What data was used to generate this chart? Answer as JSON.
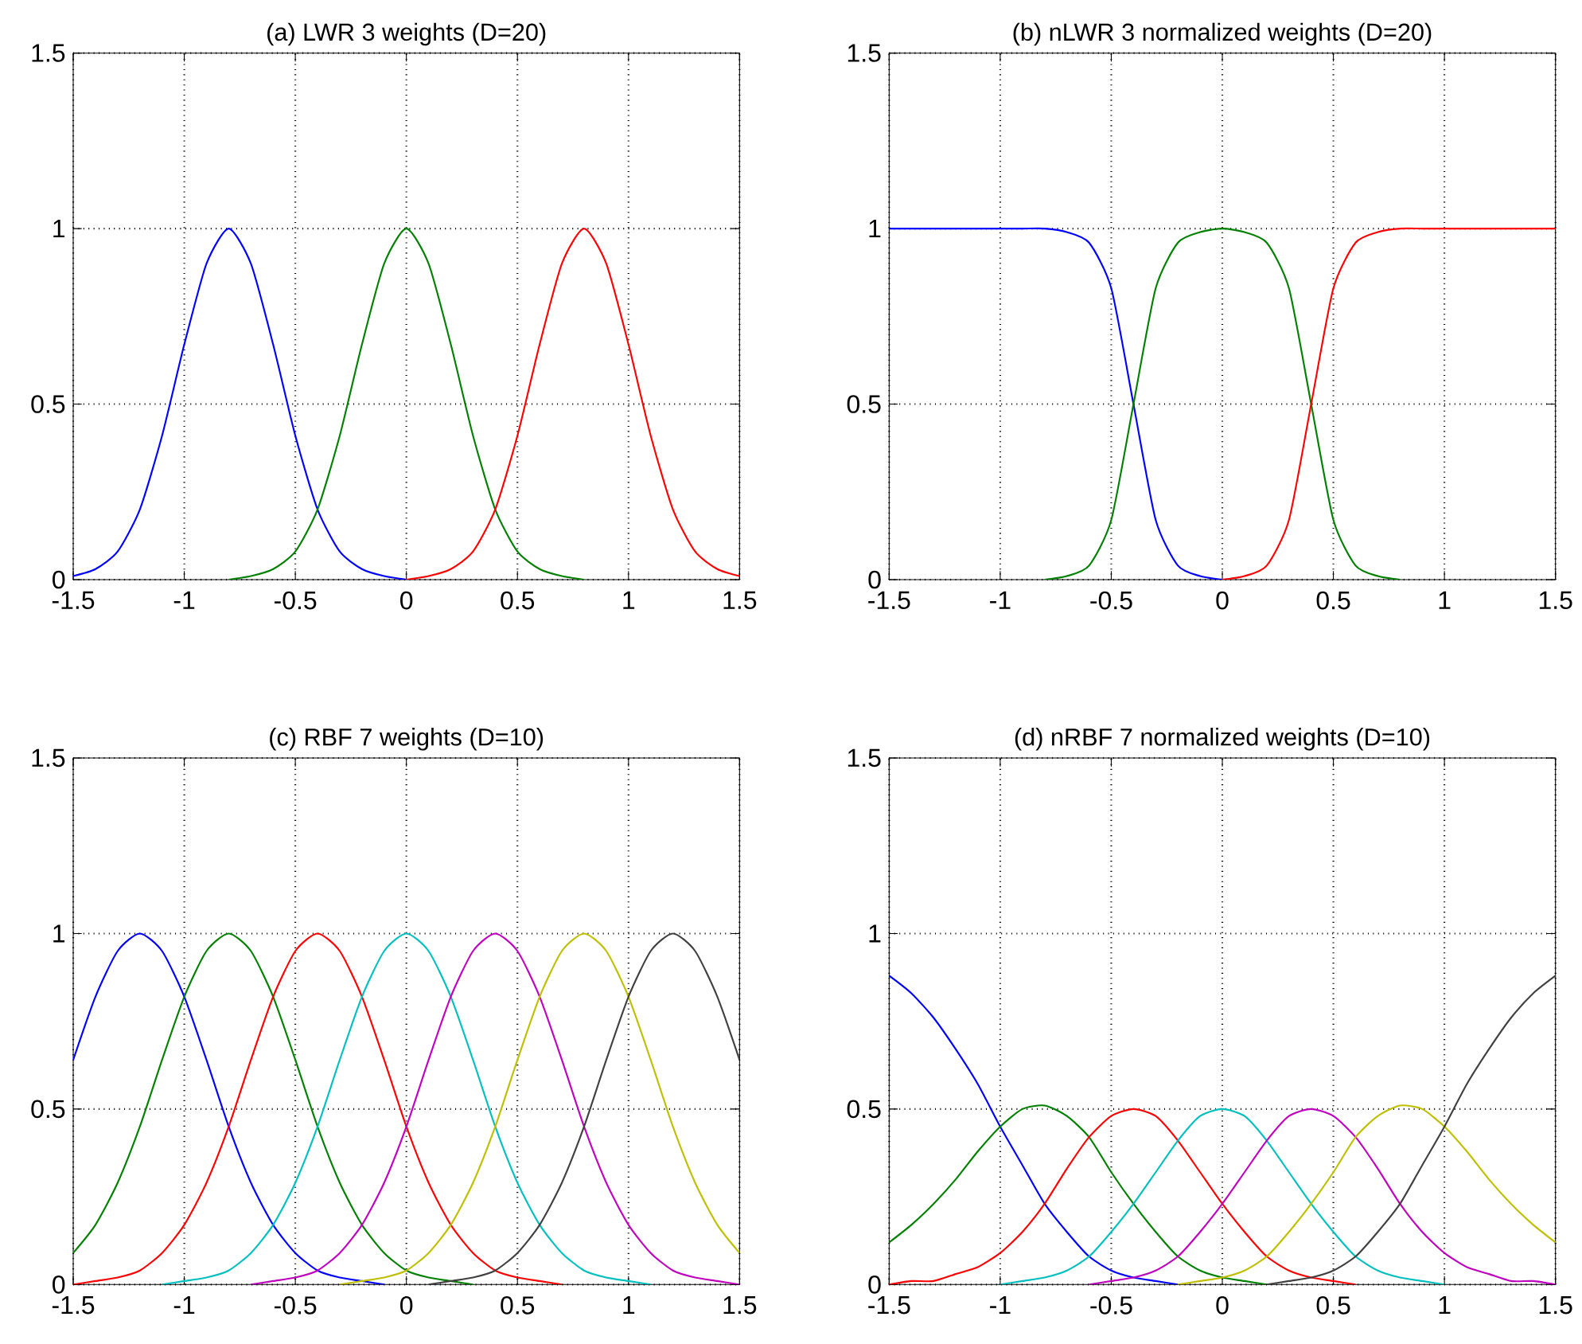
{
  "chart_data": [
    {
      "type": "line",
      "title": "(a) LWR 3 weights (D=20)",
      "x": [
        -1.5,
        -1.4,
        -1.3,
        -1.2,
        -1.1,
        -1.0,
        -0.9,
        -0.8,
        -0.7,
        -0.6,
        -0.5,
        -0.4,
        -0.3,
        -0.2,
        -0.1,
        0,
        0.1,
        0.2,
        0.3,
        0.4,
        0.5,
        0.6,
        0.7,
        0.8,
        0.9,
        1.0,
        1.1,
        1.2,
        1.3,
        1.4,
        1.5
      ],
      "xlim": [
        -1.5,
        1.5
      ],
      "ylim": [
        0,
        1.5
      ],
      "xticks": [
        -1.5,
        -1,
        -0.5,
        0,
        0.5,
        1,
        1.5
      ],
      "yticks": [
        0,
        0.5,
        1,
        1.5
      ],
      "grid": true,
      "series": [
        {
          "color": "#0000ff",
          "values": [
            0.01,
            0.03,
            0.08,
            0.2,
            0.41,
            0.67,
            0.9,
            1,
            0.9,
            0.67,
            0.41,
            0.2,
            0.08,
            0.03,
            0.01,
            0,
            null,
            null,
            null,
            null,
            null,
            null,
            null,
            null,
            null,
            null,
            null,
            null,
            null,
            null,
            null
          ]
        },
        {
          "color": "#008000",
          "values": [
            null,
            null,
            null,
            null,
            null,
            null,
            null,
            0,
            0.01,
            0.03,
            0.08,
            0.2,
            0.41,
            0.67,
            0.9,
            1,
            0.9,
            0.67,
            0.41,
            0.2,
            0.08,
            0.03,
            0.01,
            0,
            null,
            null,
            null,
            null,
            null,
            null,
            null
          ]
        },
        {
          "color": "#ff0000",
          "values": [
            null,
            null,
            null,
            null,
            null,
            null,
            null,
            null,
            null,
            null,
            null,
            null,
            null,
            null,
            null,
            0,
            0.01,
            0.03,
            0.08,
            0.2,
            0.41,
            0.67,
            0.9,
            1,
            0.9,
            0.67,
            0.41,
            0.2,
            0.08,
            0.03,
            0.01
          ]
        }
      ]
    },
    {
      "type": "line",
      "title": "(b) nLWR 3 normalized weights (D=20)",
      "x": [
        -1.5,
        -1.4,
        -1.3,
        -1.2,
        -1.1,
        -1.0,
        -0.9,
        -0.8,
        -0.7,
        -0.6,
        -0.5,
        -0.4,
        -0.3,
        -0.2,
        -0.1,
        0,
        0.1,
        0.2,
        0.3,
        0.4,
        0.5,
        0.6,
        0.7,
        0.8,
        0.9,
        1.0,
        1.1,
        1.2,
        1.3,
        1.4,
        1.5
      ],
      "xlim": [
        -1.5,
        1.5
      ],
      "ylim": [
        0,
        1.5
      ],
      "xticks": [
        -1.5,
        -1,
        -0.5,
        0,
        0.5,
        1,
        1.5
      ],
      "yticks": [
        0,
        0.5,
        1,
        1.5
      ],
      "grid": true,
      "series": [
        {
          "color": "#0000ff",
          "values": [
            1,
            1,
            1,
            1,
            1,
            1,
            1,
            1,
            0.99,
            0.96,
            0.83,
            0.5,
            0.17,
            0.04,
            0.01,
            0,
            null,
            null,
            null,
            null,
            null,
            null,
            null,
            null,
            null,
            null,
            null,
            null,
            null,
            null,
            null
          ]
        },
        {
          "color": "#008000",
          "values": [
            null,
            null,
            null,
            null,
            null,
            null,
            null,
            0,
            0.01,
            0.04,
            0.17,
            0.5,
            0.83,
            0.96,
            0.99,
            1,
            0.99,
            0.96,
            0.83,
            0.5,
            0.17,
            0.04,
            0.01,
            0,
            null,
            null,
            null,
            null,
            null,
            null,
            null
          ]
        },
        {
          "color": "#ff0000",
          "values": [
            null,
            null,
            null,
            null,
            null,
            null,
            null,
            null,
            null,
            null,
            null,
            null,
            null,
            null,
            null,
            0,
            0.01,
            0.04,
            0.17,
            0.5,
            0.83,
            0.96,
            0.99,
            1,
            1,
            1,
            1,
            1,
            1,
            1,
            1
          ]
        }
      ]
    },
    {
      "type": "line",
      "title": "(c) RBF 7 weights (D=10)",
      "x": [
        -1.5,
        -1.4,
        -1.3,
        -1.2,
        -1.1,
        -1.0,
        -0.9,
        -0.8,
        -0.7,
        -0.6,
        -0.5,
        -0.4,
        -0.3,
        -0.2,
        -0.1,
        0,
        0.1,
        0.2,
        0.3,
        0.4,
        0.5,
        0.6,
        0.7,
        0.8,
        0.9,
        1.0,
        1.1,
        1.2,
        1.3,
        1.4,
        1.5
      ],
      "xlim": [
        -1.5,
        1.5
      ],
      "ylim": [
        0,
        1.5
      ],
      "xticks": [
        -1.5,
        -1,
        -0.5,
        0,
        0.5,
        1,
        1.5
      ],
      "yticks": [
        0,
        0.5,
        1,
        1.5
      ],
      "grid": true,
      "series": [
        {
          "color": "#0000ff",
          "values": [
            0.64,
            0.82,
            0.95,
            1,
            0.95,
            0.82,
            0.64,
            0.45,
            0.29,
            0.17,
            0.09,
            0.04,
            0.02,
            0.01,
            0,
            null,
            null,
            null,
            null,
            null,
            null,
            null,
            null,
            null,
            null,
            null,
            null,
            null,
            null,
            null,
            null
          ]
        },
        {
          "color": "#008000",
          "values": [
            0.09,
            0.17,
            0.29,
            0.45,
            0.64,
            0.82,
            0.95,
            1,
            0.95,
            0.82,
            0.64,
            0.45,
            0.29,
            0.17,
            0.09,
            0.04,
            0.02,
            0.01,
            0,
            null,
            null,
            null,
            null,
            null,
            null,
            null,
            null,
            null,
            null,
            null,
            null
          ]
        },
        {
          "color": "#ff0000",
          "values": [
            0,
            0.01,
            0.02,
            0.04,
            0.09,
            0.17,
            0.29,
            0.45,
            0.64,
            0.82,
            0.95,
            1,
            0.95,
            0.82,
            0.64,
            0.45,
            0.29,
            0.17,
            0.09,
            0.04,
            0.02,
            0.01,
            0,
            null,
            null,
            null,
            null,
            null,
            null,
            null,
            null
          ]
        },
        {
          "color": "#00bfbf",
          "values": [
            null,
            null,
            null,
            null,
            0,
            0.01,
            0.02,
            0.04,
            0.09,
            0.17,
            0.29,
            0.45,
            0.64,
            0.82,
            0.95,
            1,
            0.95,
            0.82,
            0.64,
            0.45,
            0.29,
            0.17,
            0.09,
            0.04,
            0.02,
            0.01,
            0,
            null,
            null,
            null,
            null
          ]
        },
        {
          "color": "#bf00bf",
          "values": [
            null,
            null,
            null,
            null,
            null,
            null,
            null,
            null,
            0,
            0.01,
            0.02,
            0.04,
            0.09,
            0.17,
            0.29,
            0.45,
            0.64,
            0.82,
            0.95,
            1,
            0.95,
            0.82,
            0.64,
            0.45,
            0.29,
            0.17,
            0.09,
            0.04,
            0.02,
            0.01,
            0
          ]
        },
        {
          "color": "#bfbf00",
          "values": [
            null,
            null,
            null,
            null,
            null,
            null,
            null,
            null,
            null,
            null,
            null,
            null,
            0,
            0.01,
            0.02,
            0.04,
            0.09,
            0.17,
            0.29,
            0.45,
            0.64,
            0.82,
            0.95,
            1,
            0.95,
            0.82,
            0.64,
            0.45,
            0.29,
            0.17,
            0.09
          ]
        },
        {
          "color": "#404040",
          "values": [
            null,
            null,
            null,
            null,
            null,
            null,
            null,
            null,
            null,
            null,
            null,
            null,
            null,
            null,
            null,
            null,
            0,
            0.01,
            0.02,
            0.04,
            0.09,
            0.17,
            0.29,
            0.45,
            0.64,
            0.82,
            0.95,
            1,
            0.95,
            0.82,
            0.64
          ]
        }
      ]
    },
    {
      "type": "line",
      "title": "(d) nRBF 7 normalized weights (D=10)",
      "x": [
        -1.5,
        -1.4,
        -1.3,
        -1.2,
        -1.1,
        -1.0,
        -0.9,
        -0.8,
        -0.7,
        -0.6,
        -0.5,
        -0.4,
        -0.3,
        -0.2,
        -0.1,
        0,
        0.1,
        0.2,
        0.3,
        0.4,
        0.5,
        0.6,
        0.7,
        0.8,
        0.9,
        1.0,
        1.1,
        1.2,
        1.3,
        1.4,
        1.5
      ],
      "xlim": [
        -1.5,
        1.5
      ],
      "ylim": [
        0,
        1.5
      ],
      "xticks": [
        -1.5,
        -1,
        -0.5,
        0,
        0.5,
        1,
        1.5
      ],
      "yticks": [
        0,
        0.5,
        1,
        1.5
      ],
      "grid": true,
      "series": [
        {
          "color": "#0000ff",
          "values": [
            0.88,
            0.83,
            0.76,
            0.67,
            0.57,
            0.45,
            0.34,
            0.23,
            0.15,
            0.08,
            0.04,
            0.02,
            0.01,
            0,
            null,
            null,
            null,
            null,
            null,
            null,
            null,
            null,
            null,
            null,
            null,
            null,
            null,
            null,
            null,
            null,
            null
          ]
        },
        {
          "color": "#008000",
          "values": [
            0.12,
            0.17,
            0.23,
            0.3,
            0.38,
            0.45,
            0.5,
            0.51,
            0.48,
            0.42,
            0.32,
            0.23,
            0.15,
            0.08,
            0.04,
            0.02,
            0.01,
            0,
            null,
            null,
            null,
            null,
            null,
            null,
            null,
            null,
            null,
            null,
            null,
            null,
            null
          ]
        },
        {
          "color": "#ff0000",
          "values": [
            0,
            0.01,
            0.01,
            0.03,
            0.05,
            0.09,
            0.15,
            0.23,
            0.33,
            0.42,
            0.48,
            0.5,
            0.48,
            0.41,
            0.32,
            0.23,
            0.15,
            0.08,
            0.04,
            0.02,
            0.01,
            0,
            null,
            null,
            null,
            null,
            null,
            null,
            null,
            null,
            null
          ]
        },
        {
          "color": "#00bfbf",
          "values": [
            null,
            null,
            null,
            null,
            null,
            0,
            0.01,
            0.02,
            0.04,
            0.08,
            0.15,
            0.23,
            0.32,
            0.41,
            0.48,
            0.5,
            0.48,
            0.41,
            0.32,
            0.23,
            0.15,
            0.08,
            0.04,
            0.02,
            0.01,
            0,
            null,
            null,
            null,
            null,
            null
          ]
        },
        {
          "color": "#bf00bf",
          "values": [
            null,
            null,
            null,
            null,
            null,
            null,
            null,
            null,
            null,
            0,
            0.01,
            0.02,
            0.04,
            0.08,
            0.15,
            0.23,
            0.32,
            0.41,
            0.48,
            0.5,
            0.48,
            0.42,
            0.33,
            0.23,
            0.15,
            0.09,
            0.05,
            0.03,
            0.01,
            0.01,
            0
          ]
        },
        {
          "color": "#bfbf00",
          "values": [
            null,
            null,
            null,
            null,
            null,
            null,
            null,
            null,
            null,
            null,
            null,
            null,
            null,
            0,
            0.01,
            0.02,
            0.04,
            0.08,
            0.15,
            0.23,
            0.32,
            0.42,
            0.48,
            0.51,
            0.5,
            0.45,
            0.38,
            0.3,
            0.23,
            0.17,
            0.12
          ]
        },
        {
          "color": "#404040",
          "values": [
            null,
            null,
            null,
            null,
            null,
            null,
            null,
            null,
            null,
            null,
            null,
            null,
            null,
            null,
            null,
            null,
            null,
            0,
            0.01,
            0.02,
            0.04,
            0.08,
            0.15,
            0.23,
            0.34,
            0.45,
            0.57,
            0.67,
            0.76,
            0.83,
            0.88
          ]
        }
      ]
    }
  ]
}
